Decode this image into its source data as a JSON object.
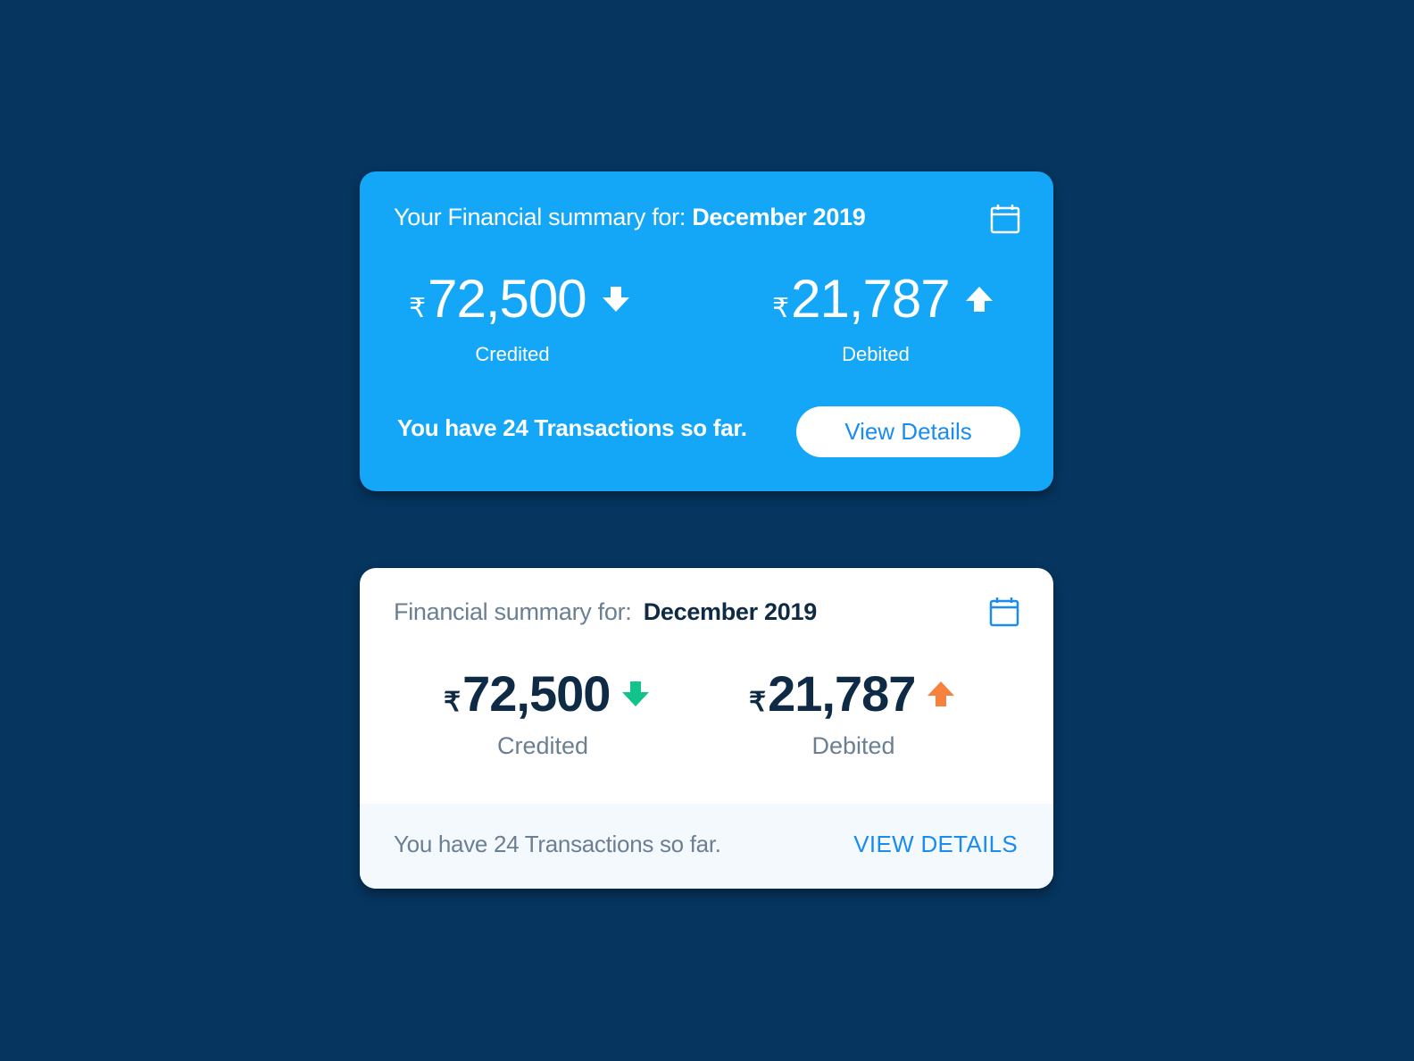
{
  "card1": {
    "title_prefix": "Your Financial summary for:",
    "period": "December 2019",
    "calendar_icon": "calendar-icon",
    "credited": {
      "currency": "₹",
      "amount": "72,500",
      "label": "Credited",
      "icon": "arrow-down-icon"
    },
    "debited": {
      "currency": "₹",
      "amount": "21,787",
      "label": "Debited",
      "icon": "arrow-up-icon"
    },
    "transactions_text": "You have 24 Transactions so far.",
    "button_label": "View Details",
    "colors": {
      "background": "#14a6f7",
      "button_text": "#1a8cf0"
    }
  },
  "card2": {
    "title_prefix": "Financial summary for:",
    "period": "December 2019",
    "calendar_icon": "calendar-icon",
    "credited": {
      "currency": "₹",
      "amount": "72,500",
      "label": "Credited",
      "icon": "arrow-down-icon",
      "color": "#12c48b"
    },
    "debited": {
      "currency": "₹",
      "amount": "21,787",
      "label": "Debited",
      "icon": "arrow-up-icon",
      "color": "#f5823f"
    },
    "transactions_text": "You have 24 Transactions so far.",
    "button_label": "VIEW DETAILS",
    "colors": {
      "background": "#ffffff",
      "footer": "#f4f9fd",
      "accent": "#1a8cf0",
      "text": "#0e2a45"
    }
  },
  "page": {
    "background": "#06355f"
  }
}
